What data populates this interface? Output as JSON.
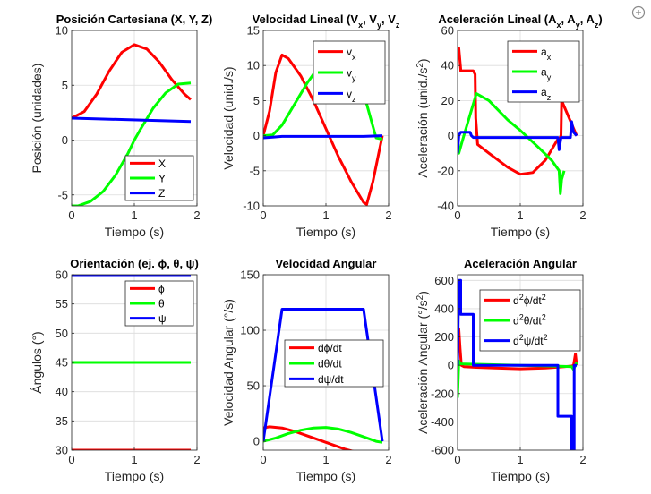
{
  "figure": {
    "toolbar_icon": "zoom-icon"
  },
  "chart_data": [
    {
      "id": "pos",
      "type": "line",
      "title": "Posición Cartesiana (X, Y, Z)",
      "xlabel": "Tiempo (s)",
      "ylabel": "Posición (unidades)",
      "xlim": [
        0,
        2
      ],
      "ylim": [
        -6,
        10
      ],
      "xticks": [
        "0",
        "1",
        "2"
      ],
      "yticks": [
        "-5",
        "0",
        "5",
        "10"
      ],
      "ytick_values": [
        -5,
        0,
        5,
        10
      ],
      "grid": true,
      "legend": "bottom-right",
      "series": [
        {
          "name": "X",
          "color": "#ff0000",
          "x": [
            0,
            0.2,
            0.4,
            0.6,
            0.8,
            1.0,
            1.2,
            1.4,
            1.6,
            1.8,
            1.9
          ],
          "y": [
            2.0,
            2.6,
            4.2,
            6.3,
            8.0,
            8.7,
            8.3,
            7.1,
            5.5,
            4.2,
            3.7
          ]
        },
        {
          "name": "Y",
          "color": "#00ff00",
          "x": [
            0,
            0.1,
            0.3,
            0.5,
            0.7,
            0.9,
            1.0,
            1.1,
            1.3,
            1.5,
            1.7,
            1.9
          ],
          "y": [
            -6.0,
            -6.0,
            -5.6,
            -4.7,
            -3.2,
            -1.2,
            0.0,
            1.0,
            2.9,
            4.3,
            5.1,
            5.2
          ]
        },
        {
          "name": "Z",
          "color": "#0000ff",
          "x": [
            0,
            1.9
          ],
          "y": [
            2.0,
            1.7
          ]
        }
      ]
    },
    {
      "id": "vel",
      "type": "line",
      "title": "Velocidad Lineal (V",
      "title_parts": [
        {
          "t": "Velocidad Lineal (V"
        },
        {
          "t": "x",
          "sub": true
        },
        {
          "t": ", V"
        },
        {
          "t": "y",
          "sub": true
        },
        {
          "t": ", V"
        },
        {
          "t": "z",
          "sub": true
        }
      ],
      "xlabel": "Tiempo (s)",
      "ylabel": "Velocidad (unid./s)",
      "xlim": [
        0,
        2
      ],
      "ylim": [
        -10,
        15
      ],
      "xticks": [
        "0",
        "1",
        "2"
      ],
      "yticks": [
        "-10",
        "-5",
        "0",
        "5",
        "10",
        "15"
      ],
      "ytick_values": [
        -10,
        -5,
        0,
        5,
        10,
        15
      ],
      "grid": true,
      "legend": "top-right",
      "series": [
        {
          "name": "v",
          "sub": "x",
          "color": "#ff0000",
          "x": [
            0,
            0.1,
            0.2,
            0.3,
            0.4,
            0.6,
            0.8,
            1.0,
            1.2,
            1.4,
            1.6,
            1.65,
            1.75,
            1.9
          ],
          "y": [
            0.0,
            3.5,
            9.0,
            11.5,
            11.0,
            8.5,
            5.0,
            1.0,
            -3.0,
            -6.5,
            -9.5,
            -9.8,
            -6.5,
            0.0
          ]
        },
        {
          "name": "v",
          "sub": "y",
          "color": "#00ff00",
          "x": [
            0,
            0.15,
            0.3,
            0.5,
            0.7,
            0.9,
            1.0,
            1.1,
            1.3,
            1.5,
            1.65,
            1.8,
            1.9
          ],
          "y": [
            0.0,
            0.1,
            1.5,
            4.5,
            7.5,
            10.0,
            11.0,
            11.5,
            10.8,
            8.0,
            4.5,
            -0.3,
            -0.5
          ]
        },
        {
          "name": "v",
          "sub": "z",
          "color": "#0000ff",
          "x": [
            0,
            0.15,
            0.3,
            1.6,
            1.9
          ],
          "y": [
            -0.3,
            -0.2,
            -0.1,
            -0.1,
            0.0
          ]
        }
      ]
    },
    {
      "id": "acc",
      "type": "line",
      "title": "Aceleración Lineal (A",
      "title_parts": [
        {
          "t": "Aceleración Lineal (A"
        },
        {
          "t": "x",
          "sub": true
        },
        {
          "t": ", A"
        },
        {
          "t": "y",
          "sub": true
        },
        {
          "t": ", A"
        },
        {
          "t": "z",
          "sub": true
        },
        {
          "t": ")"
        }
      ],
      "xlabel": "Tiempo (s)",
      "ylabel": "Aceleración (unid./s",
      "ylabel_parts": [
        {
          "t": "Aceleración (unid./s"
        },
        {
          "t": "2",
          "sup": true
        },
        {
          "t": ")"
        }
      ],
      "xlim": [
        0,
        2
      ],
      "ylim": [
        -40,
        60
      ],
      "xticks": [
        "0",
        "1",
        "2"
      ],
      "yticks": [
        "-40",
        "-20",
        "0",
        "20",
        "40",
        "60"
      ],
      "ytick_values": [
        -40,
        -20,
        0,
        20,
        40,
        60
      ],
      "grid": true,
      "legend": "top-right",
      "series": [
        {
          "name": "a",
          "sub": "x",
          "color": "#ff0000",
          "x": [
            0,
            0.02,
            0.05,
            0.05,
            0.25,
            0.28,
            0.29,
            0.32,
            0.5,
            0.8,
            1.0,
            1.2,
            1.4,
            1.6,
            1.62,
            1.65,
            1.66,
            1.9
          ],
          "y": [
            50,
            50,
            38,
            37,
            37,
            35,
            10,
            -5,
            -10,
            -18,
            -22,
            -21,
            -14,
            -2,
            -2,
            0,
            20,
            0
          ]
        },
        {
          "name": "a",
          "sub": "y",
          "color": "#00ff00",
          "x": [
            0,
            0.02,
            0.1,
            0.2,
            0.3,
            0.5,
            0.8,
            1.0,
            1.3,
            1.5,
            1.62,
            1.64,
            1.66,
            1.7
          ],
          "y": [
            -10,
            -10,
            0,
            12,
            24,
            20,
            9,
            3,
            -7,
            -14,
            -20,
            -33,
            -25,
            -20
          ]
        },
        {
          "name": "a",
          "sub": "z",
          "color": "#0000ff",
          "x": [
            0,
            0.02,
            0.05,
            0.08,
            0.2,
            0.22,
            0.25,
            1.6,
            1.62,
            1.65,
            1.8,
            1.82,
            1.85,
            1.9
          ],
          "y": [
            -10,
            0,
            2,
            2,
            2,
            0,
            -1,
            -1,
            -8,
            -1,
            -1,
            8,
            2,
            0
          ]
        }
      ]
    },
    {
      "id": "ori",
      "type": "line",
      "title": "Orientación (ej. ϕ, θ, ψ)",
      "xlabel": "Tiempo (s)",
      "ylabel": "Ángulos (°)",
      "xlim": [
        0,
        2
      ],
      "ylim": [
        30,
        60
      ],
      "xticks": [
        "0",
        "1",
        "2"
      ],
      "yticks": [
        "30",
        "35",
        "40",
        "45",
        "50",
        "55",
        "60"
      ],
      "ytick_values": [
        30,
        35,
        40,
        45,
        50,
        55,
        60
      ],
      "grid": true,
      "legend": "top-right",
      "series": [
        {
          "name": "ϕ",
          "color": "#ff0000",
          "x": [
            0,
            1.9
          ],
          "y": [
            30,
            30
          ]
        },
        {
          "name": "θ",
          "color": "#00ff00",
          "x": [
            0,
            1.9
          ],
          "y": [
            45,
            45
          ]
        },
        {
          "name": "ψ",
          "color": "#0000ff",
          "x": [
            0,
            1.9
          ],
          "y": [
            60,
            60
          ]
        }
      ]
    },
    {
      "id": "angvel",
      "type": "line",
      "title": "Velocidad Angular",
      "xlabel": "Tiempo (s)",
      "ylabel": "Velocidad Angular (°/s)",
      "xlim": [
        0,
        2
      ],
      "ylim": [
        -8,
        150
      ],
      "xticks": [
        "0",
        "1",
        "2"
      ],
      "yticks": [
        "0",
        "50",
        "100",
        "150"
      ],
      "ytick_values": [
        0,
        50,
        100,
        150
      ],
      "grid": true,
      "legend": "center",
      "series": [
        {
          "name": "dϕ/dt",
          "color": "#ff0000",
          "x": [
            0,
            0.1,
            0.3,
            0.5,
            0.7,
            0.9,
            1.1,
            1.3,
            1.5,
            1.7,
            1.8,
            1.9
          ],
          "y": [
            12,
            13,
            12,
            9,
            5,
            1,
            -3,
            -7,
            -10,
            -12,
            -12,
            -10
          ]
        },
        {
          "name": "dθ/dt",
          "color": "#00ff00",
          "x": [
            0,
            0.2,
            0.4,
            0.6,
            0.8,
            1.0,
            1.2,
            1.4,
            1.6,
            1.8,
            1.9
          ],
          "y": [
            0,
            3,
            7,
            10,
            12,
            12.5,
            11,
            8,
            4,
            0,
            -1
          ]
        },
        {
          "name": "dψ/dt",
          "color": "#0000ff",
          "x": [
            0,
            0.3,
            1.6,
            1.9
          ],
          "y": [
            0,
            119,
            119,
            0
          ]
        }
      ]
    },
    {
      "id": "angacc",
      "type": "line",
      "title": "Aceleración Angular",
      "xlabel": "Tiempo (s)",
      "ylabel": "Aceleración Angular (°/s",
      "ylabel_parts": [
        {
          "t": "Aceleración Angular (°/s"
        },
        {
          "t": "2",
          "sup": true
        },
        {
          "t": ")"
        }
      ],
      "xlim": [
        0,
        2
      ],
      "ylim": [
        -600,
        640
      ],
      "xticks": [
        "0",
        "1",
        "2"
      ],
      "yticks": [
        "-600",
        "-400",
        "-200",
        "0",
        "200",
        "400",
        "600"
      ],
      "ytick_values": [
        -600,
        -400,
        -200,
        0,
        200,
        400,
        600
      ],
      "grid": true,
      "legend": "top-right",
      "series": [
        {
          "name": "d",
          "sup": "2",
          "mid": "ϕ/dt",
          "sup2": "2",
          "color": "#ff0000",
          "x": [
            0,
            0.02,
            0.04,
            0.06,
            0.1,
            0.3,
            0.6,
            1.0,
            1.4,
            1.7,
            1.82,
            1.85,
            1.88,
            1.9
          ],
          "y": [
            150,
            260,
            120,
            0,
            -10,
            -15,
            -20,
            -25,
            -20,
            -10,
            -5,
            0,
            80,
            0
          ]
        },
        {
          "name": "d",
          "sup": "2",
          "mid": "θ/dt",
          "sup2": "2",
          "color": "#00ff00",
          "x": [
            0,
            0.02,
            0.05,
            0.2,
            0.5,
            1.0,
            1.5,
            1.82,
            1.85,
            1.9
          ],
          "y": [
            -230,
            30,
            10,
            8,
            5,
            0,
            -5,
            -10,
            -30,
            20
          ]
        },
        {
          "name": "d",
          "sup": "2",
          "mid": "ψ/dt",
          "sup2": "2",
          "color": "#0000ff",
          "x": [
            0,
            0.02,
            0.05,
            0.05,
            0.25,
            0.25,
            1.6,
            1.6,
            1.82,
            1.82,
            1.86,
            1.86,
            1.9
          ],
          "y": [
            0,
            600,
            600,
            360,
            360,
            0,
            0,
            -360,
            -360,
            -600,
            -600,
            0,
            0
          ]
        }
      ]
    }
  ]
}
